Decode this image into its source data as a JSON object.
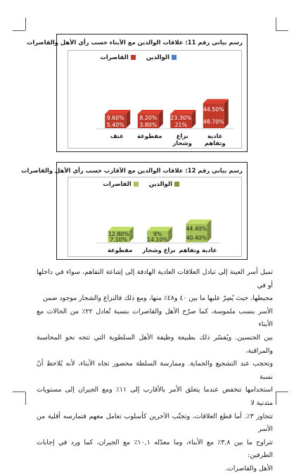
{
  "chart1": {
    "title": "رسم بياني رقم 11: علاقات الوالدين مع الأبناء حسب رأي الأهل والقاصرات",
    "colors": {
      "front": "#c0392b",
      "back": "#4a7fc1",
      "label": "#ffffff"
    },
    "chart_data": {
      "type": "bar",
      "stacked": true,
      "categories": [
        "عادية وتفاهم",
        "نزاع وشجار",
        "مقطوعة",
        "عنف"
      ],
      "series": [
        {
          "name": "الوالدين",
          "values": [
            48.7,
            21,
            3.8,
            5.4
          ],
          "labels": [
            "48.70%",
            "21%",
            "3.80%",
            "5.40%"
          ]
        },
        {
          "name": "القاصرات",
          "values": [
            44.5,
            23.3,
            8.2,
            9.6
          ],
          "labels": [
            "44.50%",
            "23.30%",
            "8.20%",
            "9.60%"
          ]
        }
      ],
      "legend_position": "top-right"
    }
  },
  "chart2": {
    "title": "رسم بياني رقم 12: علاقات الوالدين مع الأقارب حسب رأي الأهل والقاصرات",
    "colors": {
      "front": "#a8c25a",
      "back": "#7e9a38",
      "label": "#1a1a1a"
    },
    "chart_data": {
      "type": "bar",
      "stacked": true,
      "categories": [
        "عادية وتفاهم",
        "نزاع وشجار",
        "مقطوعة"
      ],
      "series": [
        {
          "name": "الوالدين",
          "values": [
            40.4,
            14.1,
            7.1
          ],
          "labels": [
            "40.40%",
            "14.10%",
            "7.10%"
          ]
        },
        {
          "name": "القاصرات",
          "values": [
            44.4,
            9,
            12.8
          ],
          "labels": [
            "44.40%",
            "9%",
            "12.80%"
          ]
        }
      ],
      "legend_position": "top-right"
    }
  },
  "paragraph": {
    "lines": [
      "تميل أسر العينة إلى تبادل العلاقات العادية الهادفة إلى إشاعة التفاهم، سواء في داخلها أو في",
      "محيطها، حيث يُصِرّ عليها ما بين ٤٠ و٤٨٪ منها، ومع ذلك فالنزاع والشجار موجود ضمن",
      "الأسر بنسب ملموسة، كما صرّح الأهل والقاصرات بنسبة تُعادل ٢٢٪ من الحالات مع الأبناء",
      "بين الجنسين. ويُفسّر ذلك بطبيعة وظيفة الأهل السلطوية التي تتجه نحو المحاسبة والمراقبة،",
      "وتحجب عند التشجيع والحماية. وممارسة السلطة محصور تجاه الأبناء، لأنه يُلاحظ أنّ نسبة",
      "استخدامها تنخفض عندما يتعلق الأمر بالأقارب إلى ١١٪ ومع الجيران إلى مستويات متدنية لا",
      "تتجاوز ٣٪. أما قطع العلاقات، وتجنّب الآخرين كأسلوب تعامل معهم فتمارسه أقلية من الأسر",
      "تتراوح ما بين ٣,٨٪ مع الأبناء، وما معدّله ١٠,١٪ مع الجيران، كما ورد في إجابات الطرفين:",
      "الأهل والقاصرات."
    ]
  }
}
